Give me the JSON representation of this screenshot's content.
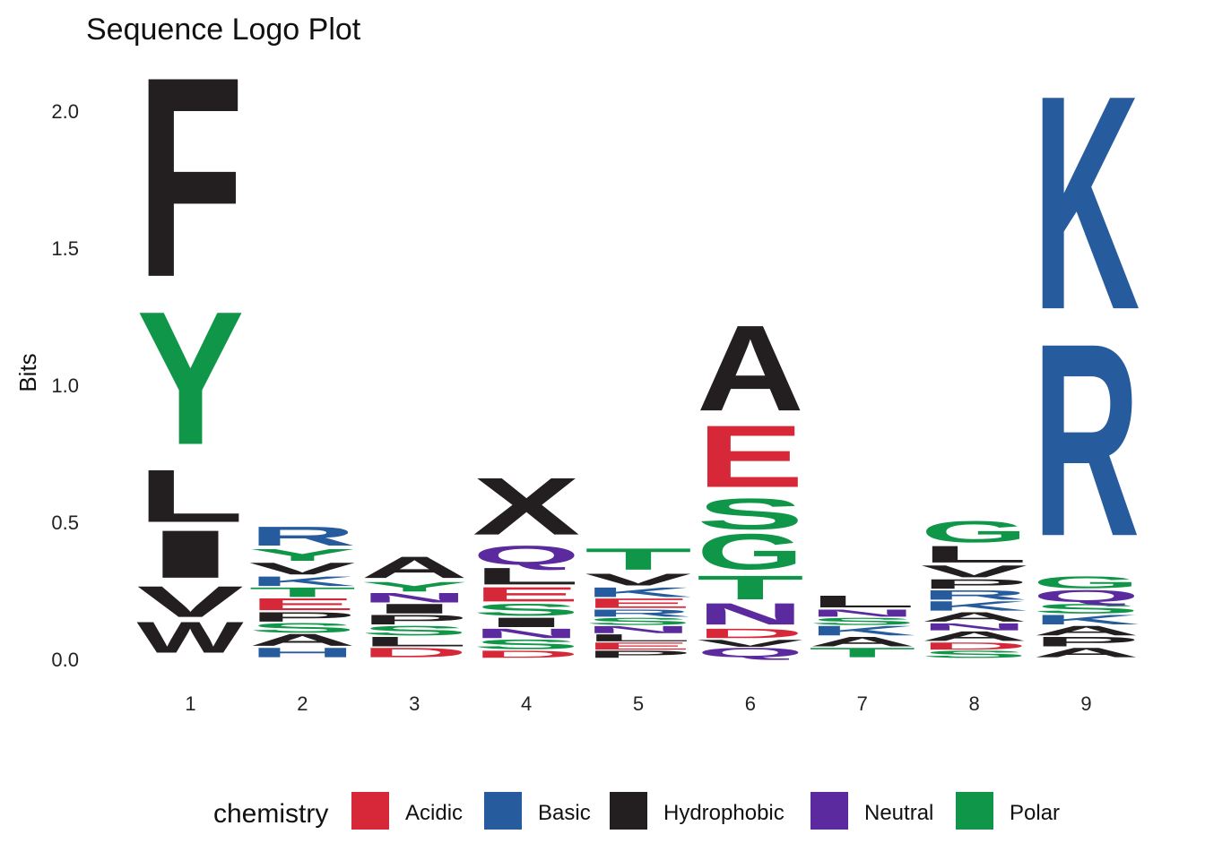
{
  "chart_data": {
    "type": "sequence-logo",
    "title": "Sequence Logo Plot",
    "xlabel": "",
    "ylabel": "Bits",
    "ylim": [
      0,
      2.05
    ],
    "yticks": [
      "0.0",
      "0.5",
      "1.0",
      "1.5",
      "2.0"
    ],
    "positions": [
      "1",
      "2",
      "3",
      "4",
      "5",
      "6",
      "7",
      "8",
      "9"
    ],
    "grid": false,
    "legend_placement": "bottom",
    "legend": {
      "title": "chemistry",
      "items": [
        {
          "name": "Acidic",
          "color": "#d62839"
        },
        {
          "name": "Basic",
          "color": "#265c9e"
        },
        {
          "name": "Hydrophobic",
          "color": "#231f20"
        },
        {
          "name": "Neutral",
          "color": "#5b2a9e"
        },
        {
          "name": "Polar",
          "color": "#109648"
        }
      ]
    },
    "columns": [
      {
        "position": "1",
        "stack": [
          {
            "letter": "W",
            "height": 0.13,
            "group": "Hydrophobic"
          },
          {
            "letter": "V",
            "height": 0.13,
            "group": "Hydrophobic"
          },
          {
            "letter": "I",
            "height": 0.2,
            "group": "Hydrophobic"
          },
          {
            "letter": "L",
            "height": 0.22,
            "group": "Hydrophobic"
          },
          {
            "letter": "Y",
            "height": 0.56,
            "group": "Polar"
          },
          {
            "letter": "F",
            "height": 0.84,
            "group": "Hydrophobic"
          }
        ]
      },
      {
        "position": "2",
        "stack": [
          {
            "letter": "H",
            "height": 0.04,
            "group": "Basic"
          },
          {
            "letter": "A",
            "height": 0.05,
            "group": "Hydrophobic"
          },
          {
            "letter": "S",
            "height": 0.04,
            "group": "Polar"
          },
          {
            "letter": "P",
            "height": 0.04,
            "group": "Hydrophobic"
          },
          {
            "letter": "E",
            "height": 0.05,
            "group": "Acidic"
          },
          {
            "letter": "T",
            "height": 0.04,
            "group": "Polar"
          },
          {
            "letter": "K",
            "height": 0.04,
            "group": "Basic"
          },
          {
            "letter": "V",
            "height": 0.05,
            "group": "Hydrophobic"
          },
          {
            "letter": "Y",
            "height": 0.05,
            "group": "Polar"
          },
          {
            "letter": "R",
            "height": 0.08,
            "group": "Basic"
          }
        ]
      },
      {
        "position": "3",
        "stack": [
          {
            "letter": "D",
            "height": 0.04,
            "group": "Acidic"
          },
          {
            "letter": "L",
            "height": 0.04,
            "group": "Hydrophobic"
          },
          {
            "letter": "S",
            "height": 0.04,
            "group": "Polar"
          },
          {
            "letter": "P",
            "height": 0.04,
            "group": "Hydrophobic"
          },
          {
            "letter": "I",
            "height": 0.04,
            "group": "Hydrophobic"
          },
          {
            "letter": "N",
            "height": 0.04,
            "group": "Neutral"
          },
          {
            "letter": "Y",
            "height": 0.04,
            "group": "Polar"
          },
          {
            "letter": "A",
            "height": 0.09,
            "group": "Hydrophobic"
          }
        ]
      },
      {
        "position": "4",
        "stack": [
          {
            "letter": "D",
            "height": 0.03,
            "group": "Acidic"
          },
          {
            "letter": "S",
            "height": 0.04,
            "group": "Polar"
          },
          {
            "letter": "N",
            "height": 0.04,
            "group": "Neutral"
          },
          {
            "letter": "I",
            "height": 0.04,
            "group": "Hydrophobic"
          },
          {
            "letter": "S",
            "height": 0.05,
            "group": "Polar"
          },
          {
            "letter": "E",
            "height": 0.06,
            "group": "Acidic"
          },
          {
            "letter": "L",
            "height": 0.07,
            "group": "Hydrophobic"
          },
          {
            "letter": "Q",
            "height": 0.08,
            "group": "Neutral"
          },
          {
            "letter": "X",
            "height": 0.24,
            "group": "Hydrophobic"
          }
        ]
      },
      {
        "position": "5",
        "stack": [
          {
            "letter": "P",
            "height": 0.03,
            "group": "Hydrophobic"
          },
          {
            "letter": "E",
            "height": 0.03,
            "group": "Acidic"
          },
          {
            "letter": "L",
            "height": 0.03,
            "group": "Hydrophobic"
          },
          {
            "letter": "N",
            "height": 0.03,
            "group": "Neutral"
          },
          {
            "letter": "S",
            "height": 0.03,
            "group": "Polar"
          },
          {
            "letter": "R",
            "height": 0.03,
            "group": "Basic"
          },
          {
            "letter": "E",
            "height": 0.04,
            "group": "Acidic"
          },
          {
            "letter": "K",
            "height": 0.04,
            "group": "Basic"
          },
          {
            "letter": "V",
            "height": 0.05,
            "group": "Hydrophobic"
          },
          {
            "letter": "T",
            "height": 0.09,
            "group": "Polar"
          }
        ]
      },
      {
        "position": "6",
        "stack": [
          {
            "letter": "Q",
            "height": 0.04,
            "group": "Neutral"
          },
          {
            "letter": "V",
            "height": 0.03,
            "group": "Hydrophobic"
          },
          {
            "letter": "D",
            "height": 0.04,
            "group": "Acidic"
          },
          {
            "letter": "N",
            "height": 0.09,
            "group": "Neutral"
          },
          {
            "letter": "T",
            "height": 0.1,
            "group": "Polar"
          },
          {
            "letter": "G",
            "height": 0.15,
            "group": "Polar"
          },
          {
            "letter": "S",
            "height": 0.13,
            "group": "Polar"
          },
          {
            "letter": "E",
            "height": 0.26,
            "group": "Acidic"
          },
          {
            "letter": "A",
            "height": 0.36,
            "group": "Hydrophobic"
          }
        ]
      },
      {
        "position": "7",
        "stack": [
          {
            "letter": "T",
            "height": 0.04,
            "group": "Polar"
          },
          {
            "letter": "A",
            "height": 0.04,
            "group": "Hydrophobic"
          },
          {
            "letter": "K",
            "height": 0.04,
            "group": "Basic"
          },
          {
            "letter": "S",
            "height": 0.03,
            "group": "Polar"
          },
          {
            "letter": "N",
            "height": 0.03,
            "group": "Neutral"
          },
          {
            "letter": "L",
            "height": 0.05,
            "group": "Hydrophobic"
          }
        ]
      },
      {
        "position": "8",
        "stack": [
          {
            "letter": "S",
            "height": 0.03,
            "group": "Polar"
          },
          {
            "letter": "D",
            "height": 0.03,
            "group": "Acidic"
          },
          {
            "letter": "A",
            "height": 0.04,
            "group": "Hydrophobic"
          },
          {
            "letter": "N",
            "height": 0.03,
            "group": "Neutral"
          },
          {
            "letter": "A",
            "height": 0.04,
            "group": "Hydrophobic"
          },
          {
            "letter": "K",
            "height": 0.04,
            "group": "Basic"
          },
          {
            "letter": "R",
            "height": 0.04,
            "group": "Basic"
          },
          {
            "letter": "P",
            "height": 0.04,
            "group": "Hydrophobic"
          },
          {
            "letter": "V",
            "height": 0.05,
            "group": "Hydrophobic"
          },
          {
            "letter": "L",
            "height": 0.07,
            "group": "Hydrophobic"
          },
          {
            "letter": "G",
            "height": 0.09,
            "group": "Polar"
          }
        ]
      },
      {
        "position": "9",
        "stack": [
          {
            "letter": "A",
            "height": 0.04,
            "group": "Hydrophobic"
          },
          {
            "letter": "P",
            "height": 0.04,
            "group": "Hydrophobic"
          },
          {
            "letter": "A",
            "height": 0.04,
            "group": "Hydrophobic"
          },
          {
            "letter": "K",
            "height": 0.04,
            "group": "Basic"
          },
          {
            "letter": "S",
            "height": 0.04,
            "group": "Polar"
          },
          {
            "letter": "Q",
            "height": 0.05,
            "group": "Neutral"
          },
          {
            "letter": "G",
            "height": 0.05,
            "group": "Polar"
          },
          {
            "letter": "R",
            "height": 0.81,
            "group": "Basic"
          },
          {
            "letter": "K",
            "height": 0.9,
            "group": "Basic"
          }
        ]
      }
    ]
  }
}
